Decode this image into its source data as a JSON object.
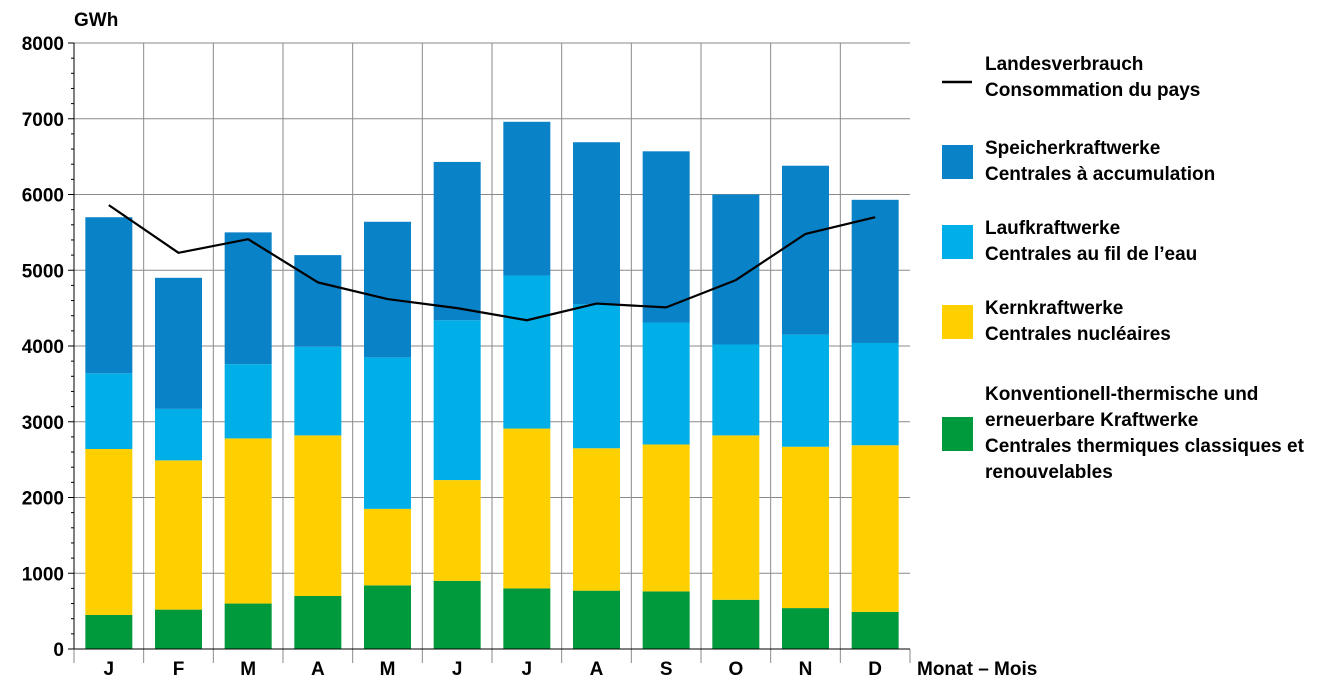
{
  "chart_data": {
    "type": "bar",
    "stacked": true,
    "unit_label": "GWh",
    "xlabel": "Monat – Mois",
    "ylabel": "",
    "ylim": [
      0,
      8000
    ],
    "yticks": [
      0,
      1000,
      2000,
      3000,
      4000,
      5000,
      6000,
      7000,
      8000
    ],
    "grid": true,
    "legend_position": "right",
    "categories": [
      "J",
      "F",
      "M",
      "A",
      "M",
      "J",
      "J",
      "A",
      "S",
      "O",
      "N",
      "D"
    ],
    "series": [
      {
        "name": "Konventionell-thermische und erneuerbare Kraftwerke / Centrales thermiques classiques et renouvelables",
        "color": "#009a3d",
        "values": [
          450,
          520,
          600,
          700,
          840,
          900,
          800,
          770,
          760,
          650,
          540,
          490
        ]
      },
      {
        "name": "Kernkraftwerke / Centrales nucléaires",
        "color": "#ffd000",
        "values": [
          2190,
          1970,
          2180,
          2120,
          1010,
          1330,
          2110,
          1880,
          1940,
          2170,
          2130,
          2200
        ]
      },
      {
        "name": "Laufkraftwerke / Centrales au fil de l’eau",
        "color": "#00aee8",
        "values": [
          1000,
          680,
          980,
          1170,
          2000,
          2110,
          2020,
          1900,
          1610,
          1200,
          1480,
          1350
        ]
      },
      {
        "name": "Speicherkraftwerke / Centrales à accumulation",
        "color": "#0a82c8",
        "values": [
          2060,
          1730,
          1740,
          1210,
          1790,
          2090,
          2030,
          2140,
          2260,
          1980,
          2230,
          1890
        ]
      }
    ],
    "line_series": {
      "name": "Landesverbrauch / Consommation du pays",
      "color": "#000000",
      "values": [
        5860,
        5230,
        5410,
        4840,
        4620,
        4500,
        4340,
        4560,
        4510,
        4870,
        5480,
        5700
      ]
    }
  },
  "legend": {
    "items": [
      {
        "kind": "line",
        "color": "#000000",
        "lines": [
          "Landesverbrauch",
          "Consommation du pays"
        ]
      },
      {
        "kind": "box",
        "color": "#0a82c8",
        "lines": [
          "Speicherkraftwerke",
          "Centrales à accumulation"
        ]
      },
      {
        "kind": "box",
        "color": "#00aee8",
        "lines": [
          "Laufkraftwerke",
          "Centrales au fil de l’eau"
        ]
      },
      {
        "kind": "box",
        "color": "#ffd000",
        "lines": [
          "Kernkraftwerke",
          "Centrales nucléaires"
        ]
      },
      {
        "kind": "box",
        "color": "#009a3d",
        "lines": [
          "Konventionell-thermische und",
          "erneuerbare Kraftwerke",
          "Centrales thermiques classiques et",
          "renouvelables"
        ]
      }
    ]
  }
}
